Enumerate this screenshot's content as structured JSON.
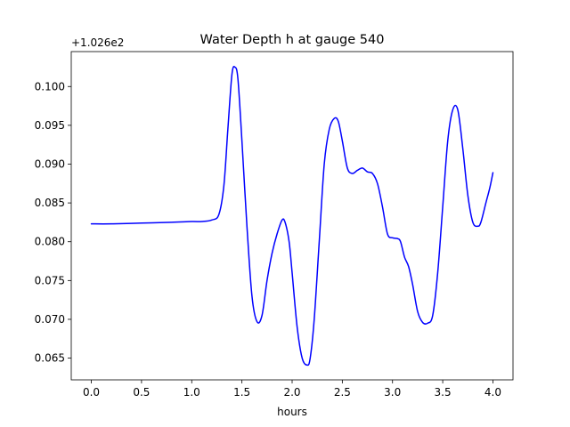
{
  "chart_data": {
    "type": "line",
    "title": "Water Depth h at gauge 540",
    "xlabel": "hours",
    "ylabel": "",
    "offset_label": "+1.026e2",
    "xlim": [
      -0.2,
      4.2
    ],
    "ylim": [
      0.0622,
      0.1045
    ],
    "x_ticks": [
      0.0,
      0.5,
      1.0,
      1.5,
      2.0,
      2.5,
      3.0,
      3.5,
      4.0
    ],
    "x_tick_labels": [
      "0.0",
      "0.5",
      "1.0",
      "1.5",
      "2.0",
      "2.5",
      "3.0",
      "3.5",
      "4.0"
    ],
    "y_ticks": [
      0.065,
      0.07,
      0.075,
      0.08,
      0.085,
      0.09,
      0.095,
      0.1
    ],
    "y_tick_labels": [
      "0.065",
      "0.070",
      "0.075",
      "0.080",
      "0.085",
      "0.090",
      "0.095",
      "0.100"
    ],
    "grid": false,
    "series": [
      {
        "color": "#0000ff",
        "x": [
          0.0,
          0.2,
          0.5,
          0.8,
          1.0,
          1.1,
          1.2,
          1.27,
          1.32,
          1.36,
          1.4,
          1.43,
          1.46,
          1.5,
          1.55,
          1.6,
          1.65,
          1.7,
          1.75,
          1.8,
          1.85,
          1.9,
          1.93,
          1.97,
          2.0,
          2.05,
          2.1,
          2.15,
          2.18,
          2.22,
          2.27,
          2.32,
          2.37,
          2.42,
          2.46,
          2.5,
          2.55,
          2.6,
          2.65,
          2.7,
          2.75,
          2.8,
          2.85,
          2.9,
          2.95,
          3.0,
          3.05,
          3.08,
          3.12,
          3.16,
          3.2,
          3.25,
          3.3,
          3.35,
          3.4,
          3.45,
          3.5,
          3.55,
          3.6,
          3.65,
          3.7,
          3.75,
          3.8,
          3.85,
          3.88,
          3.93,
          3.97,
          4.0
        ],
        "y": [
          0.0823,
          0.0823,
          0.0824,
          0.0825,
          0.0826,
          0.0826,
          0.0828,
          0.0835,
          0.0872,
          0.0945,
          0.1015,
          0.1025,
          0.101,
          0.093,
          0.082,
          0.073,
          0.0697,
          0.0705,
          0.075,
          0.0785,
          0.081,
          0.0828,
          0.0825,
          0.08,
          0.076,
          0.069,
          0.065,
          0.0641,
          0.065,
          0.07,
          0.08,
          0.09,
          0.0945,
          0.0959,
          0.0955,
          0.093,
          0.0895,
          0.0888,
          0.0892,
          0.0895,
          0.089,
          0.0888,
          0.0875,
          0.0845,
          0.081,
          0.0805,
          0.0804,
          0.08,
          0.078,
          0.0768,
          0.0745,
          0.071,
          0.0696,
          0.0695,
          0.0705,
          0.076,
          0.0845,
          0.093,
          0.097,
          0.097,
          0.092,
          0.086,
          0.0825,
          0.082,
          0.0825,
          0.085,
          0.087,
          0.0889
        ]
      }
    ]
  }
}
